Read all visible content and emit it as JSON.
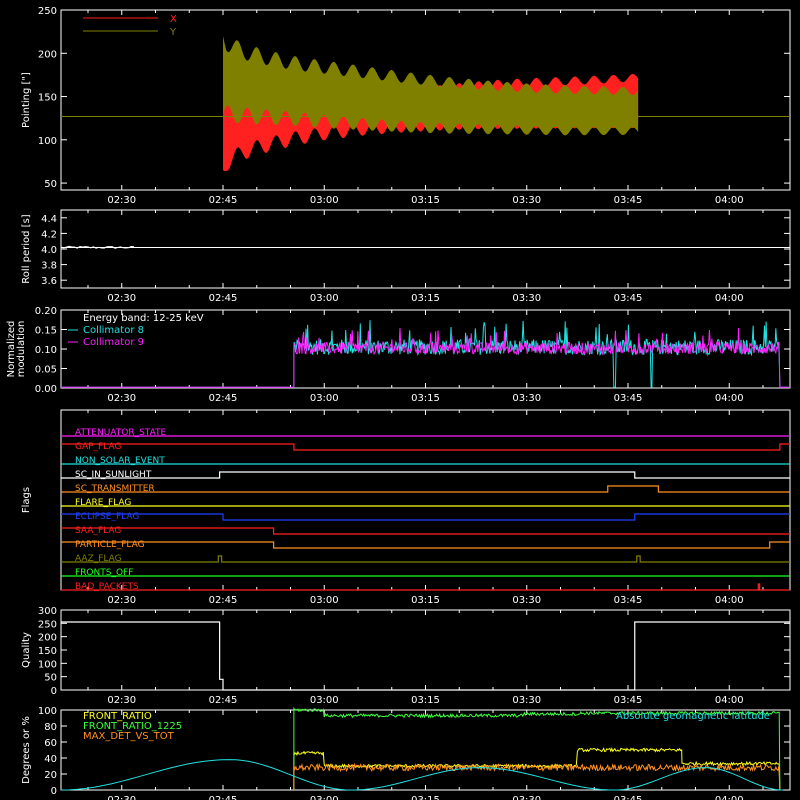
{
  "x_ticks": [
    "02:30",
    "02:45",
    "03:00",
    "03:15",
    "03:30",
    "03:45",
    "04:00"
  ],
  "x_tick_minutes": [
    150,
    165,
    180,
    195,
    210,
    225,
    240
  ],
  "x_range_minutes": [
    141,
    249
  ],
  "colors": {
    "background": "#000000",
    "axes": "#ffffff",
    "red": "#ff2020",
    "olive": "#808000",
    "cyan": "#20e0e0",
    "magenta": "#ff20ff",
    "green": "#20ff20",
    "yellow": "#ffff20",
    "orange": "#ff9020",
    "blue": "#2040ff",
    "lightgreen": "#40ff40"
  },
  "chart_data": [
    {
      "id": "pointing",
      "type": "area",
      "title": "",
      "xlabel": "",
      "ylabel": "Pointing [\"]",
      "ylim": [
        42,
        250
      ],
      "yticks": [
        50,
        100,
        150,
        200,
        250
      ],
      "ref_line": 127,
      "series": [
        {
          "name": "X",
          "color": "#ff2020",
          "x": [
            165,
            165.5,
            168,
            172,
            176,
            180,
            186,
            192,
            198,
            204,
            210,
            216,
            222,
            226.5
          ],
          "upper": [
            147,
            145,
            140,
            137,
            138,
            140,
            146,
            152,
            158,
            163,
            166,
            168,
            170,
            172
          ],
          "lower": [
            65,
            73,
            86,
            95,
            102,
            107,
            112,
            115,
            117,
            118,
            118,
            118,
            118,
            118
          ]
        },
        {
          "name": "Y",
          "color": "#808000",
          "x": [
            165,
            165.5,
            168,
            172,
            176,
            180,
            186,
            192,
            198,
            204,
            210,
            216,
            222,
            226.5
          ],
          "upper": [
            220,
            212,
            202,
            194,
            188,
            184,
            178,
            172,
            167,
            163,
            160,
            158,
            157,
            156
          ],
          "lower": [
            130,
            130,
            128,
            126,
            124,
            121,
            118,
            115,
            113,
            112,
            111,
            110,
            110,
            110
          ]
        }
      ]
    },
    {
      "id": "roll",
      "type": "line",
      "title": "",
      "xlabel": "",
      "ylabel": "Roll period [s]",
      "ylim": [
        3.5,
        4.5
      ],
      "yticks": [
        3.6,
        3.8,
        4.0,
        4.2,
        4.4
      ],
      "yticklabels": [
        "3.6",
        "3.8",
        "4.0",
        "4.2",
        "4.4"
      ],
      "series": [
        {
          "name": "",
          "color": "#ffffff",
          "x": [
            141,
            249
          ],
          "y": [
            4.02,
            4.02
          ]
        }
      ]
    },
    {
      "id": "modulation",
      "type": "line",
      "title": "",
      "xlabel": "",
      "ylabel": [
        "Normalized",
        "modulation"
      ],
      "ylim": [
        0,
        0.2
      ],
      "yticks": [
        0,
        0.05,
        0.1,
        0.15,
        0.2
      ],
      "yticklabels": [
        "0.00",
        "0.05",
        "0.10",
        "0.15",
        "0.20"
      ],
      "legend_title": "Energy band: 12-25 keV",
      "legend_placement": "top-left",
      "active_range": [
        175.5,
        247.5
      ],
      "dips": [
        [
          223,
          0.002
        ],
        [
          228.5,
          0.002
        ]
      ],
      "series": [
        {
          "name": "Collimator 8",
          "color": "#20e0e0",
          "mean": 0.105,
          "spread": 0.02
        },
        {
          "name": "Collimator 9",
          "color": "#ff20ff",
          "mean": 0.102,
          "spread": 0.015
        }
      ]
    },
    {
      "id": "flags",
      "type": "line",
      "title": "",
      "xlabel": "",
      "ylabel": "Flags",
      "series": [
        {
          "name": "ATTENUATOR_STATE",
          "color": "#ff20ff",
          "base": 0,
          "steps": []
        },
        {
          "name": "GAP_FLAG",
          "color": "#ff2020",
          "base": 1,
          "steps": [
            [
              175.5,
              0
            ],
            [
              247.5,
              1
            ]
          ]
        },
        {
          "name": "NON_SOLAR_EVENT",
          "color": "#20e0e0",
          "base": 0,
          "steps": []
        },
        {
          "name": "SC_IN_SUNLIGHT",
          "color": "#ffffff",
          "base": 0,
          "steps": [
            [
              164.5,
              1
            ],
            [
              226,
              0
            ]
          ]
        },
        {
          "name": "SC_TRANSMITTER",
          "color": "#ff9020",
          "base": 0,
          "steps": [
            [
              222,
              1
            ],
            [
              229.5,
              0
            ]
          ]
        },
        {
          "name": "FLARE_FLAG",
          "color": "#ffff20",
          "base": 0,
          "steps": []
        },
        {
          "name": "ECLIPSE_FLAG",
          "color": "#2040ff",
          "base": 1,
          "steps": [
            [
              165,
              0
            ],
            [
              226,
              1
            ]
          ]
        },
        {
          "name": "SAA_FLAG",
          "color": "#ff2020",
          "base": 1,
          "steps": [
            [
              172.5,
              0
            ]
          ]
        },
        {
          "name": "PARTICLE_FLAG",
          "color": "#ff9020",
          "base": 1,
          "steps": [
            [
              172.5,
              0
            ],
            [
              246,
              1
            ]
          ]
        },
        {
          "name": "AAZ_FLAG",
          "color": "#808000",
          "base": 0,
          "steps": [
            [
              164.3,
              1
            ],
            [
              164.8,
              0
            ],
            [
              226.3,
              1
            ],
            [
              226.8,
              0
            ]
          ]
        },
        {
          "name": "FRONTS_OFF",
          "color": "#20ff20",
          "base": 0,
          "steps": []
        },
        {
          "name": "BAD_PACKETS",
          "color": "#ff2020",
          "base": 0,
          "steps": [
            [
              244.3,
              1
            ],
            [
              244.5,
              0
            ]
          ]
        }
      ]
    },
    {
      "id": "quality",
      "type": "line",
      "title": "",
      "xlabel": "",
      "ylabel": "Quality",
      "ylim": [
        0,
        300
      ],
      "yticks": [
        0,
        50,
        100,
        150,
        200,
        250,
        300
      ],
      "series": [
        {
          "name": "",
          "color": "#ffffff",
          "x": [
            141,
            164.5,
            164.5,
            165,
            165,
            226,
            226,
            249
          ],
          "y": [
            255,
            255,
            40,
            40,
            0,
            0,
            255,
            255
          ]
        }
      ]
    },
    {
      "id": "geo",
      "type": "line",
      "title": "",
      "xlabel": "",
      "ylabel": "Degrees or %",
      "ylim": [
        0,
        100
      ],
      "yticks": [
        0,
        20,
        40,
        60,
        80,
        100
      ],
      "legend_placement": "top-left",
      "active_range": [
        175.5,
        247.5
      ],
      "series": [
        {
          "name": "FRONT_RATIO",
          "color": "#ffff20",
          "segments": [
            [
              175.5,
              180,
              46
            ],
            [
              180,
              217.5,
              30
            ],
            [
              217.5,
              233,
              50
            ],
            [
              233,
              247.5,
              33
            ]
          ]
        },
        {
          "name": "FRONT_RATIO_1225",
          "color": "#40ff40",
          "segments": [
            [
              175.5,
              180,
              100
            ],
            [
              180,
              209.5,
              93
            ],
            [
              209.5,
              218,
              95
            ],
            [
              218,
              247.5,
              96
            ]
          ]
        },
        {
          "name": "MAX_DET_VS_TOT",
          "color": "#ff9020",
          "segments": [
            [
              175.5,
              247.5,
              28
            ]
          ]
        },
        {
          "name": "Absolute geomagnetic latitude",
          "color": "#20e0e0",
          "latitude_peaks": [
            [
              141,
              0
            ],
            [
              166,
              38
            ],
            [
              184,
              0
            ],
            [
              203,
              28
            ],
            [
              223,
              0
            ],
            [
              236.5,
              28
            ],
            [
              248,
              0
            ]
          ]
        }
      ]
    }
  ]
}
